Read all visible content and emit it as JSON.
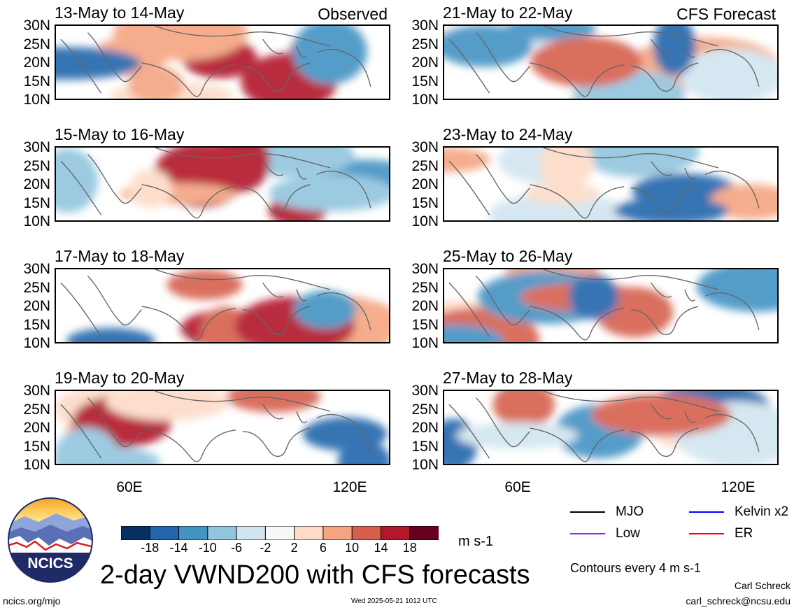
{
  "panels": [
    {
      "title": "13-May to 14-May",
      "tag": "Observed",
      "seed": 1
    },
    {
      "title": "21-May to 22-May",
      "tag": "CFS Forecast",
      "seed": 2
    },
    {
      "title": "15-May to 16-May",
      "tag": "",
      "seed": 3
    },
    {
      "title": "23-May to 24-May",
      "tag": "",
      "seed": 4
    },
    {
      "title": "17-May to 18-May",
      "tag": "",
      "seed": 5
    },
    {
      "title": "25-May to 26-May",
      "tag": "",
      "seed": 6
    },
    {
      "title": "19-May to 20-May",
      "tag": "",
      "seed": 7
    },
    {
      "title": "27-May to 28-May",
      "tag": "",
      "seed": 8
    }
  ],
  "lat_labels": [
    "30N",
    "25N",
    "20N",
    "15N",
    "10N"
  ],
  "lon_labels": [
    "60E",
    "120E"
  ],
  "colorbar": {
    "colors": [
      "#053061",
      "#2166ac",
      "#4393c3",
      "#92c5de",
      "#d1e5f0",
      "#f7f7f7",
      "#fddbc7",
      "#f4a582",
      "#d6604d",
      "#b2182b",
      "#67001f"
    ],
    "labels": [
      "-18",
      "-14",
      "-10",
      "-6",
      "-2",
      "2",
      "6",
      "10",
      "14",
      "18"
    ],
    "units": "m s-1"
  },
  "legend": [
    {
      "label": "MJO",
      "color": "#000000"
    },
    {
      "label": "Kelvin x2",
      "color": "#0000ff"
    },
    {
      "label": "Low",
      "color": "#a020f0"
    },
    {
      "label": "ER",
      "color": "#ff0000"
    }
  ],
  "contour_note": "Contours every 4 m s-1",
  "main_title": "2-day VWND200 with CFS forecasts",
  "logo_text": "NCICS",
  "footer_left": "ncics.org/mjo",
  "footer_center": "Wed 2025-05-21 1012 UTC",
  "author_name": "Carl Schreck",
  "author_email": "carl_schreck@ncsu.edu"
}
